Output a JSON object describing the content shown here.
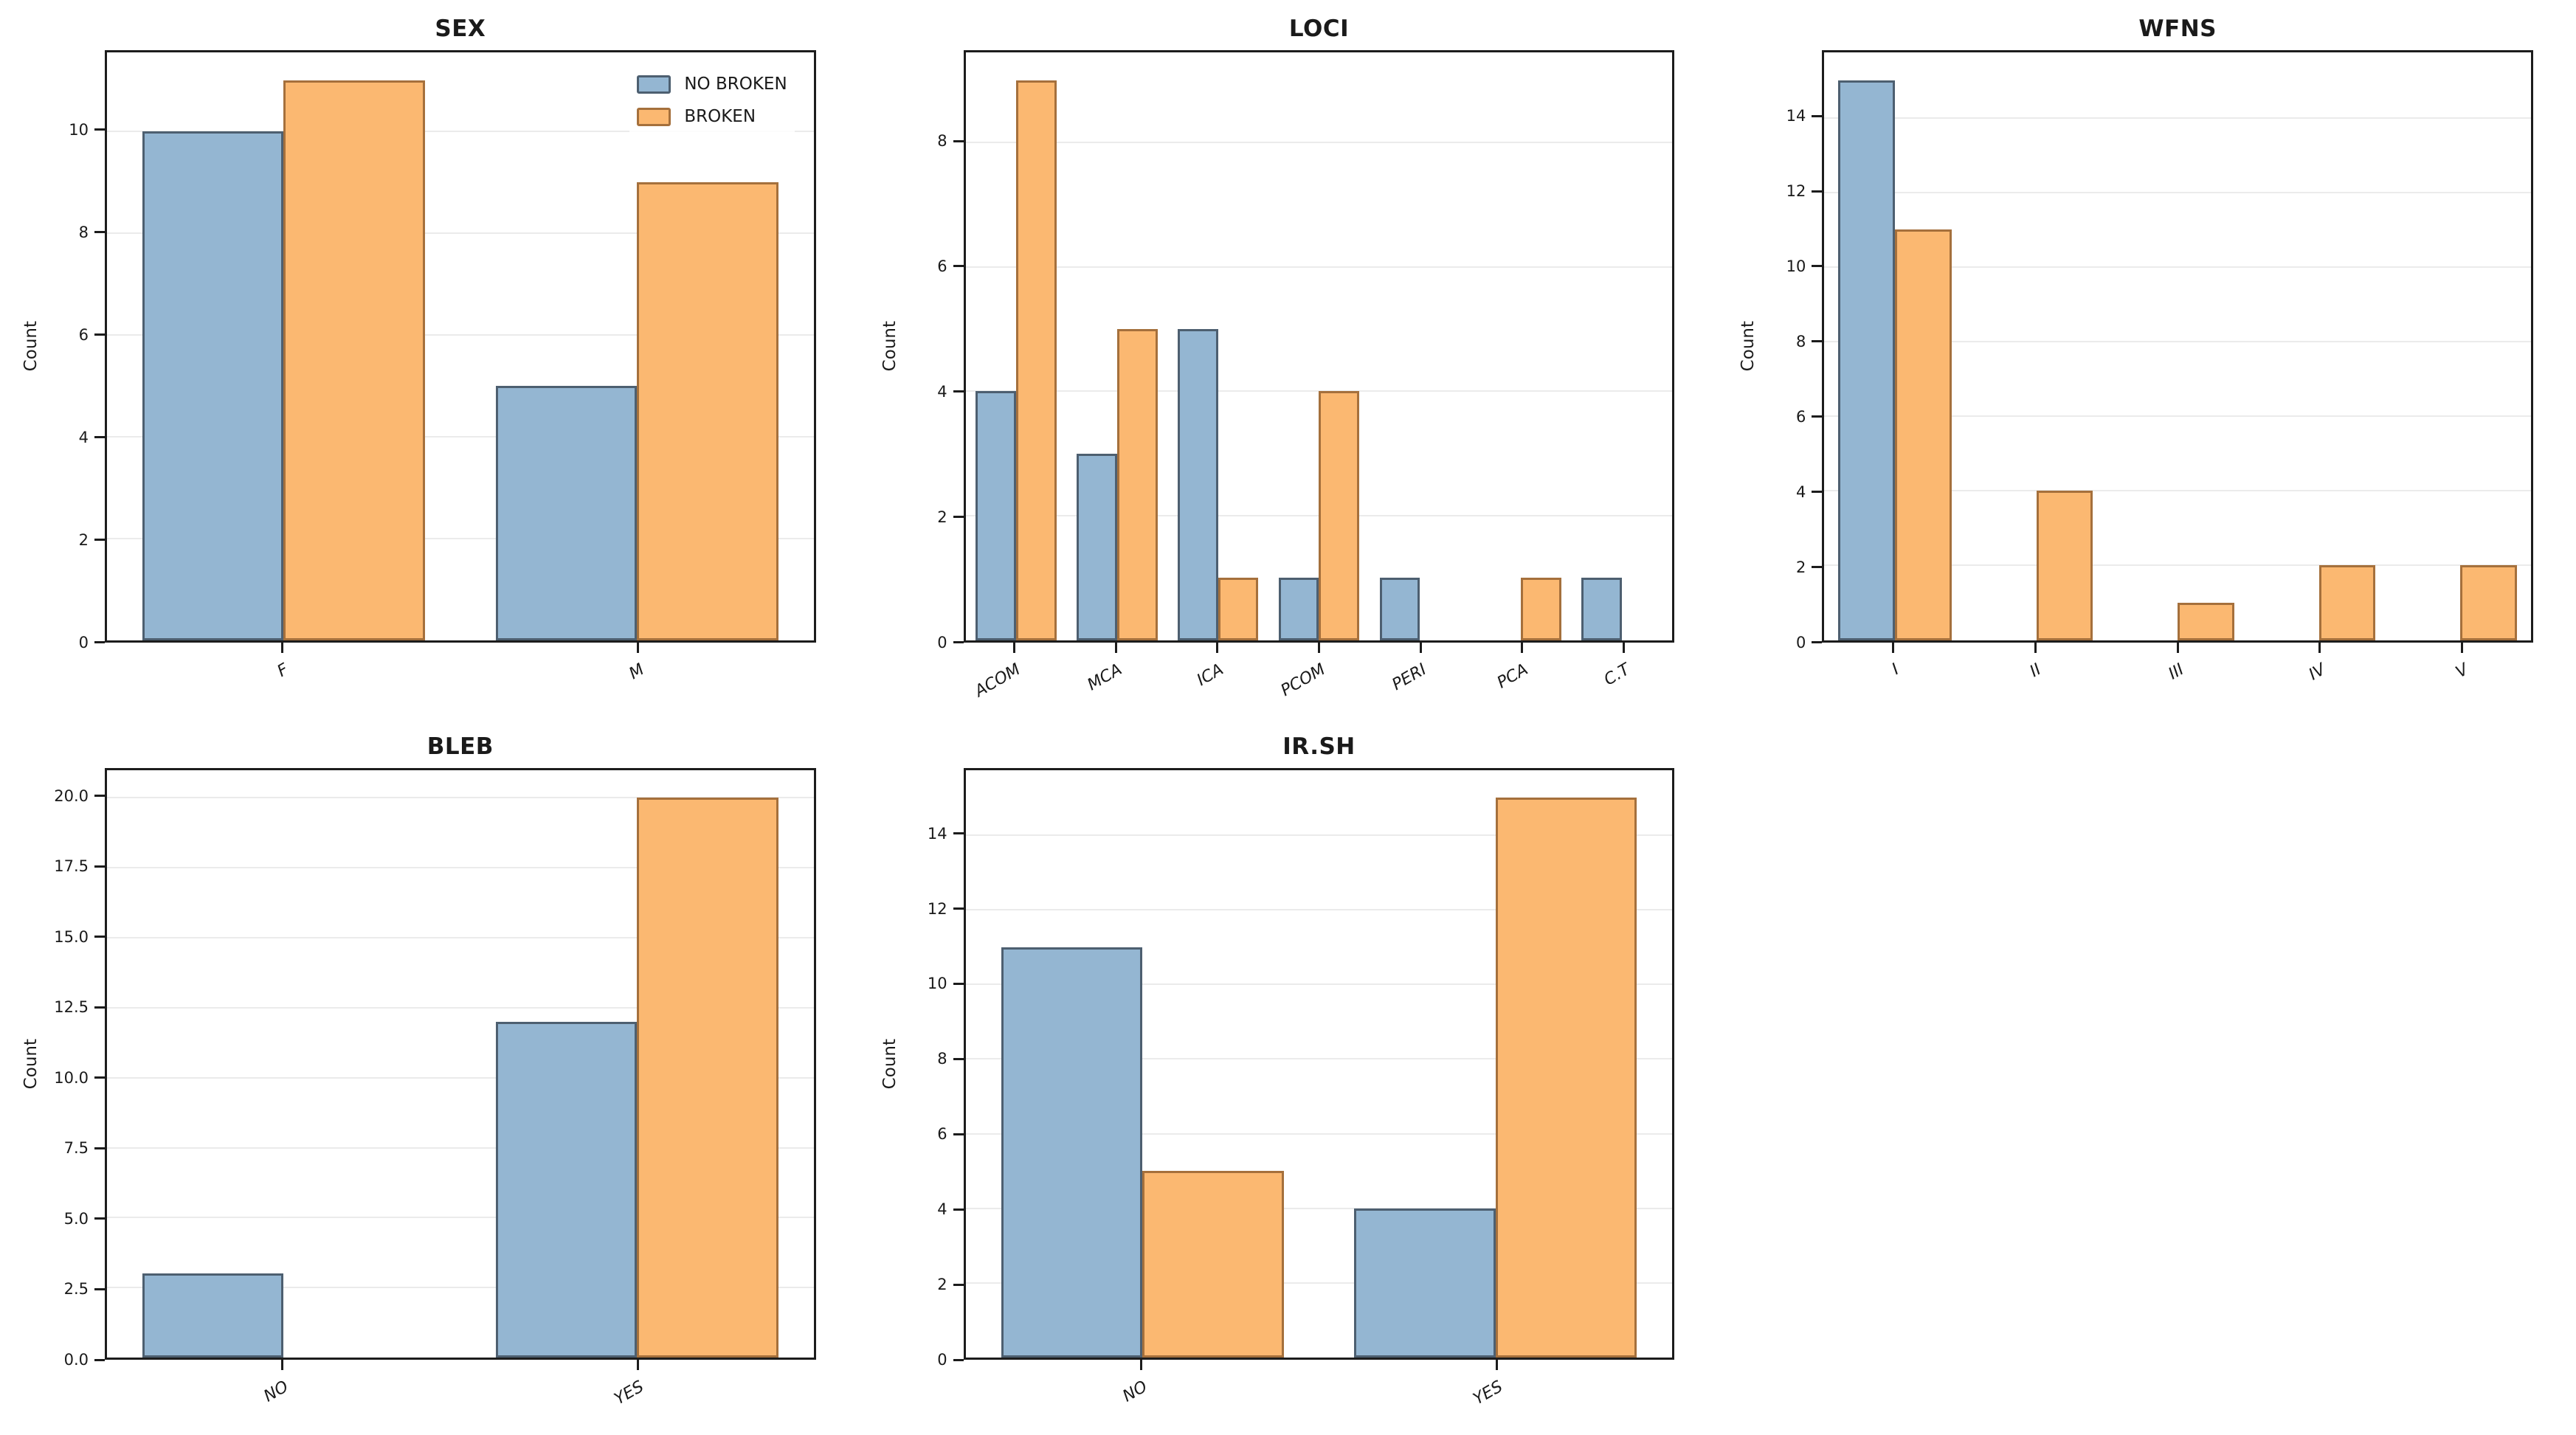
{
  "figure": {
    "background": "#ffffff"
  },
  "colors": {
    "no_broken_fill": "#94b6d2",
    "no_broken_edge": "#4d5f70",
    "broken_fill": "#fbb871",
    "broken_edge": "#a5703c",
    "grid": "#ebebeb",
    "axis": "#1c1c1c"
  },
  "legend": {
    "items": [
      "NO BROKEN",
      "BROKEN"
    ]
  },
  "chart_data": [
    {
      "type": "bar",
      "title": "SEX",
      "ylabel": "Count",
      "categories": [
        "F",
        "M"
      ],
      "series": [
        {
          "name": "NO BROKEN",
          "values": [
            10,
            5
          ]
        },
        {
          "name": "BROKEN",
          "values": [
            11,
            9
          ]
        }
      ],
      "yticks": [
        0,
        2,
        4,
        6,
        8,
        10
      ],
      "ytick_labels": [
        "0",
        "2",
        "4",
        "6",
        "8",
        "10"
      ],
      "ylim": [
        0,
        11.55
      ],
      "grid": true,
      "legend": true,
      "legend_position": "upper right"
    },
    {
      "type": "bar",
      "title": "LOCI",
      "ylabel": "Count",
      "categories": [
        "ACOM",
        "MCA",
        "ICA",
        "PCOM",
        "PERI",
        "PCA",
        "C.T"
      ],
      "series": [
        {
          "name": "NO BROKEN",
          "values": [
            4,
            3,
            5,
            1,
            1,
            0,
            1
          ]
        },
        {
          "name": "BROKEN",
          "values": [
            9,
            5,
            1,
            4,
            0,
            1,
            0
          ]
        }
      ],
      "yticks": [
        0,
        2,
        4,
        6,
        8
      ],
      "ytick_labels": [
        "0",
        "2",
        "4",
        "6",
        "8"
      ],
      "ylim": [
        0,
        9.45
      ],
      "grid": true,
      "legend": false
    },
    {
      "type": "bar",
      "title": "WFNS",
      "ylabel": "Count",
      "categories": [
        "I",
        "II",
        "III",
        "IV",
        "V"
      ],
      "series": [
        {
          "name": "NO BROKEN",
          "values": [
            15,
            0,
            0,
            0,
            0
          ]
        },
        {
          "name": "BROKEN",
          "values": [
            11,
            4,
            1,
            2,
            2
          ]
        }
      ],
      "yticks": [
        0,
        2,
        4,
        6,
        8,
        10,
        12,
        14
      ],
      "ytick_labels": [
        "0",
        "2",
        "4",
        "6",
        "8",
        "10",
        "12",
        "14"
      ],
      "ylim": [
        0,
        15.75
      ],
      "grid": true,
      "legend": false
    },
    {
      "type": "bar",
      "title": "BLEB",
      "ylabel": "Count",
      "categories": [
        "NO",
        "YES"
      ],
      "series": [
        {
          "name": "NO BROKEN",
          "values": [
            3,
            12
          ]
        },
        {
          "name": "BROKEN",
          "values": [
            0,
            20
          ]
        }
      ],
      "yticks": [
        0,
        2.5,
        5,
        7.5,
        10,
        12.5,
        15,
        17.5,
        20
      ],
      "ytick_labels": [
        "0.0",
        "2.5",
        "5.0",
        "7.5",
        "10.0",
        "12.5",
        "15.0",
        "17.5",
        "20.0"
      ],
      "ylim": [
        0,
        21
      ],
      "grid": true,
      "legend": false
    },
    {
      "type": "bar",
      "title": "IR.SH",
      "ylabel": "Count",
      "categories": [
        "NO",
        "YES"
      ],
      "series": [
        {
          "name": "NO BROKEN",
          "values": [
            11,
            4
          ]
        },
        {
          "name": "BROKEN",
          "values": [
            5,
            15
          ]
        }
      ],
      "yticks": [
        0,
        2,
        4,
        6,
        8,
        10,
        12,
        14
      ],
      "ytick_labels": [
        "0",
        "2",
        "4",
        "6",
        "8",
        "10",
        "12",
        "14"
      ],
      "ylim": [
        0,
        15.75
      ],
      "grid": true,
      "legend": false
    }
  ]
}
